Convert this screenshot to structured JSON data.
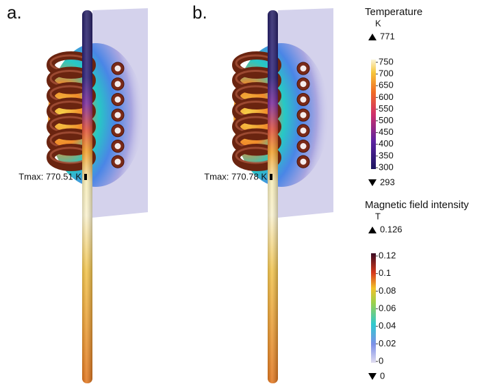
{
  "panels": [
    {
      "label": "a.",
      "annotation": "Tmax: 770.51 K"
    },
    {
      "label": "b.",
      "annotation": "Tmax: 770.78 K"
    }
  ],
  "legends": [
    {
      "title": "Temperature",
      "unit": "K",
      "max": "771",
      "min": "293",
      "ticks": [
        "750",
        "700",
        "650",
        "600",
        "550",
        "500",
        "450",
        "400",
        "350",
        "300"
      ]
    },
    {
      "title": "Magnetic field intensity",
      "unit": "T",
      "max": "0.126",
      "min": "0",
      "ticks": [
        "0.12",
        "0.1",
        "0.08",
        "0.06",
        "0.04",
        "0.02",
        "0"
      ]
    }
  ]
}
